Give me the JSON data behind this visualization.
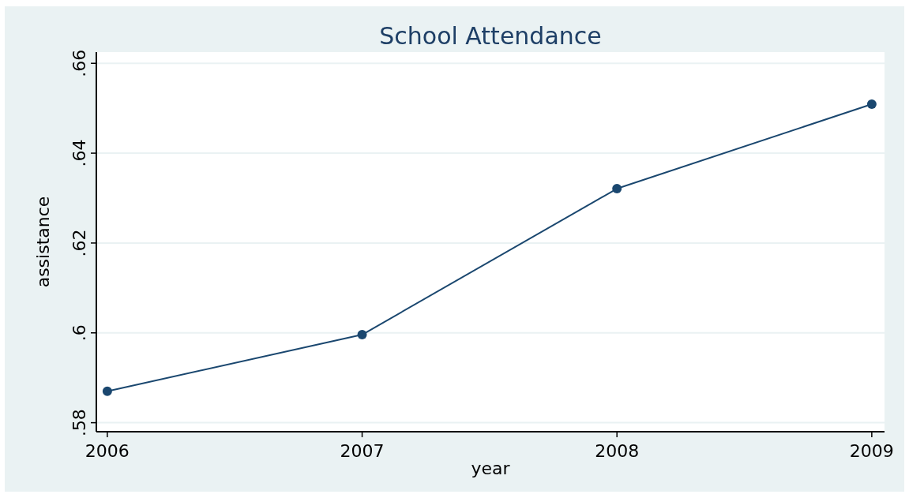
{
  "chart_data": {
    "type": "line",
    "title": "School Attendance",
    "xlabel": "year",
    "ylabel": "assistance",
    "x": [
      2006,
      2007,
      2008,
      2009
    ],
    "series": [
      {
        "color": "#1a476f",
        "values": [
          0.587,
          0.5996,
          0.6321,
          0.6509
        ]
      }
    ],
    "xlim": [
      2005.957,
      2009.05
    ],
    "xticks": [
      2006,
      2007,
      2008,
      2009
    ],
    "ylim": [
      0.578,
      0.6625
    ],
    "yticks": [
      {
        "value": 0.58,
        "label": ".58"
      },
      {
        "value": 0.6,
        "label": ".6"
      },
      {
        "value": 0.62,
        "label": ".62"
      },
      {
        "value": 0.64,
        "label": ".64"
      },
      {
        "value": 0.66,
        "label": ".66"
      }
    ],
    "grid": "y",
    "marker": "circle",
    "line_style": "solid"
  }
}
